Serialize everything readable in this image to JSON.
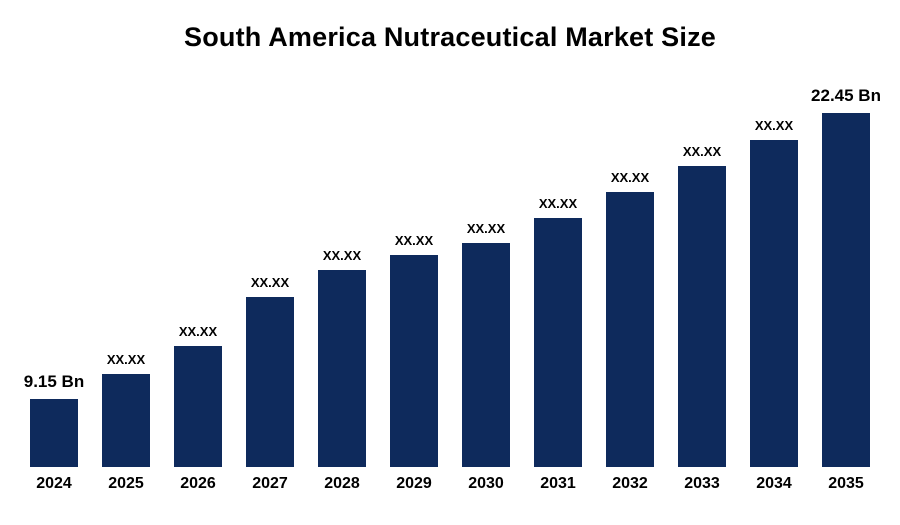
{
  "title": "South America Nutraceutical Market Size",
  "colors": {
    "bar": "#0e2a5c",
    "background": "#ffffff",
    "text": "#000000"
  },
  "chart_data": {
    "type": "bar",
    "title": "South America Nutraceutical Market Size",
    "categories": [
      "2024",
      "2025",
      "2026",
      "2027",
      "2028",
      "2029",
      "2030",
      "2031",
      "2032",
      "2033",
      "2034",
      "2035"
    ],
    "values": [
      9.15,
      10.32,
      11.64,
      13.9,
      15.17,
      15.87,
      16.43,
      17.56,
      18.78,
      20.0,
      21.22,
      22.45
    ],
    "labels": [
      "9.15 Bn",
      "XX.XX",
      "XX.XX",
      "XX.XX",
      "XX.XX",
      "XX.XX",
      "XX.XX",
      "XX.XX",
      "XX.XX",
      "XX.XX",
      "XX.XX",
      "22.45 Bn"
    ],
    "values_estimated_from_pixels": true,
    "unit": "Bn",
    "xlabel": "",
    "ylabel": "",
    "ylim": [
      6,
      23.2
    ],
    "grid": false,
    "legend": "none",
    "first_value_label": "9.15 Bn",
    "last_value_label": "22.45 Bn"
  }
}
